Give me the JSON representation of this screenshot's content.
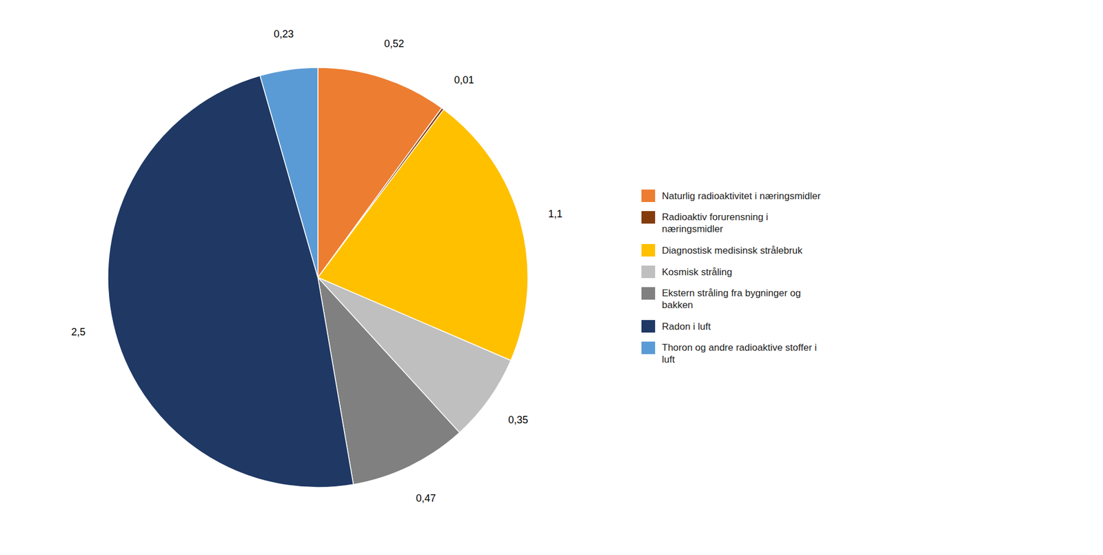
{
  "chart_data": {
    "type": "pie",
    "categories": [
      "Naturlig radioaktivitet i næringsmidler",
      "Radioaktiv forurensning i\nnæringsmidler",
      "Diagnostisk medisinsk strålebruk",
      "Kosmisk stråling",
      "Ekstern stråling fra bygninger og\nbakken",
      "Radon i luft",
      "Thoron og andre radioaktive stoffer i\nluft"
    ],
    "values": [
      0.52,
      0.01,
      1.1,
      0.35,
      0.47,
      2.5,
      0.23
    ],
    "value_labels": [
      "0,52",
      "0,01",
      "1,1",
      "0,35",
      "0,47",
      "2,5",
      "0,23"
    ],
    "colors": [
      "#ED7D31",
      "#843C0C",
      "#FFC000",
      "#BFBFBF",
      "#808080",
      "#1F3864",
      "#5B9BD5"
    ],
    "data_labels": true,
    "legend": "right"
  }
}
